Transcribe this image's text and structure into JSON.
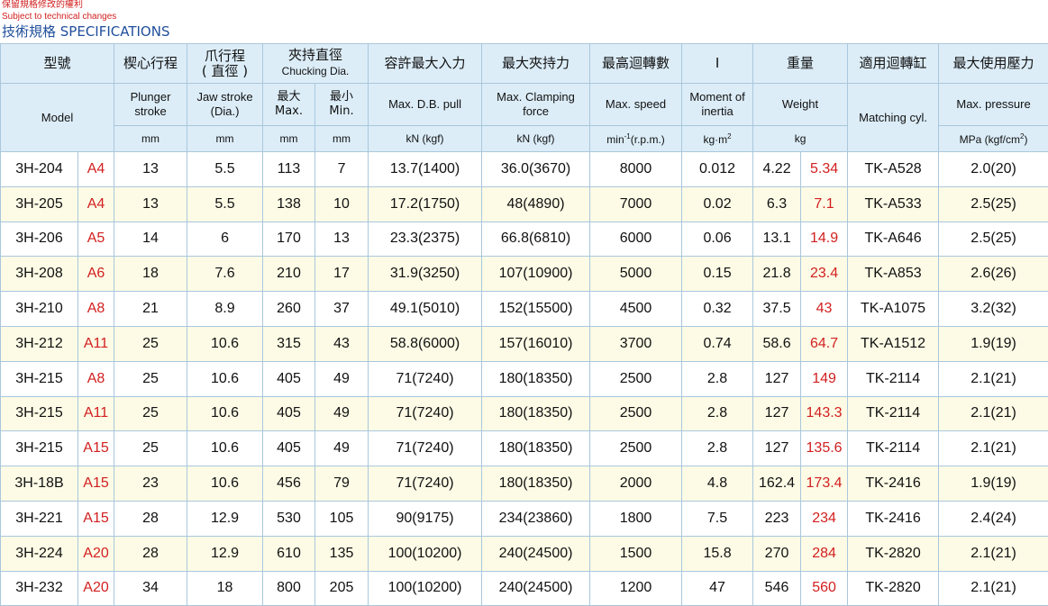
{
  "notice": {
    "zh": "保留規格修改的權利",
    "en": "Subject to technical changes"
  },
  "title": "技術規格 SPECIFICATIONS",
  "header": {
    "model_zh": "型號",
    "model_en": "Model",
    "plunger_zh": "楔心行程",
    "plunger_en": "Plunger stroke",
    "plunger_unit": "mm",
    "jaw_zh": "爪行程",
    "jaw_zh2": "( 直徑 )",
    "jaw_en": "Jaw stroke",
    "jaw_en2": "(Dia.)",
    "jaw_unit": "mm",
    "chuck_zh": "夾持直徑",
    "chuck_en": "Chucking Dia.",
    "max_zh": "最大",
    "max_en": "Max.",
    "min_zh": "最小",
    "min_en": "Min.",
    "max_unit": "mm",
    "min_unit": "mm",
    "pull_zh": "容許最大入力",
    "pull_en": "Max. D.B. pull",
    "pull_unit": "kN (kgf)",
    "clamp_zh": "最大夾持力",
    "clamp_en": "Max. Clamping",
    "clamp_en2": "force",
    "clamp_unit": "kN (kgf)",
    "speed_zh": "最高迴轉數",
    "speed_en": "Max. speed",
    "speed_unit_pre": "min",
    "speed_unit_sup": "-1",
    "speed_unit_post": "(r.p.m.)",
    "inertia_zh": "I",
    "inertia_en": "Moment of",
    "inertia_en2": "inertia",
    "inertia_unit_pre": "kg·m",
    "inertia_unit_sup": "2",
    "weight_zh": "重量",
    "weight_en": "Weight",
    "weight_unit": "kg",
    "cyl_zh": "適用迴轉缸",
    "cyl_en": "Matching cyl.",
    "pressure_zh": "最大使用壓力",
    "pressure_en": "Max. pressure",
    "pressure_unit_pre": "MPa (kgf/cm",
    "pressure_unit_sup": "2",
    "pressure_unit_post": ")"
  },
  "rows": [
    {
      "model": "3H-204",
      "variant": "A4",
      "plunger": "13",
      "jaw": "5.5",
      "max": "113",
      "min": "7",
      "pull": "13.7(1400)",
      "clamp": "36.0(3670)",
      "speed": "8000",
      "inertia": "0.012",
      "weight_a": "4.22",
      "weight_b": "5.34",
      "cyl": "TK-A528",
      "pressure": "2.0(20)"
    },
    {
      "model": "3H-205",
      "variant": "A4",
      "plunger": "13",
      "jaw": "5.5",
      "max": "138",
      "min": "10",
      "pull": "17.2(1750)",
      "clamp": "48(4890)",
      "speed": "7000",
      "inertia": "0.02",
      "weight_a": "6.3",
      "weight_b": "7.1",
      "cyl": "TK-A533",
      "pressure": "2.5(25)"
    },
    {
      "model": "3H-206",
      "variant": "A5",
      "plunger": "14",
      "jaw": "6",
      "max": "170",
      "min": "13",
      "pull": "23.3(2375)",
      "clamp": "66.8(6810)",
      "speed": "6000",
      "inertia": "0.06",
      "weight_a": "13.1",
      "weight_b": "14.9",
      "cyl": "TK-A646",
      "pressure": "2.5(25)"
    },
    {
      "model": "3H-208",
      "variant": "A6",
      "plunger": "18",
      "jaw": "7.6",
      "max": "210",
      "min": "17",
      "pull": "31.9(3250)",
      "clamp": "107(10900)",
      "speed": "5000",
      "inertia": "0.15",
      "weight_a": "21.8",
      "weight_b": "23.4",
      "cyl": "TK-A853",
      "pressure": "2.6(26)"
    },
    {
      "model": "3H-210",
      "variant": "A8",
      "plunger": "21",
      "jaw": "8.9",
      "max": "260",
      "min": "37",
      "pull": "49.1(5010)",
      "clamp": "152(15500)",
      "speed": "4500",
      "inertia": "0.32",
      "weight_a": "37.5",
      "weight_b": "43",
      "cyl": "TK-A1075",
      "pressure": "3.2(32)"
    },
    {
      "model": "3H-212",
      "variant": "A11",
      "plunger": "25",
      "jaw": "10.6",
      "max": "315",
      "min": "43",
      "pull": "58.8(6000)",
      "clamp": "157(16010)",
      "speed": "3700",
      "inertia": "0.74",
      "weight_a": "58.6",
      "weight_b": "64.7",
      "cyl": "TK-A1512",
      "pressure": "1.9(19)"
    },
    {
      "model": "3H-215",
      "variant": "A8",
      "plunger": "25",
      "jaw": "10.6",
      "max": "405",
      "min": "49",
      "pull": "71(7240)",
      "clamp": "180(18350)",
      "speed": "2500",
      "inertia": "2.8",
      "weight_a": "127",
      "weight_b": "149",
      "cyl": "TK-2114",
      "pressure": "2.1(21)"
    },
    {
      "model": "3H-215",
      "variant": "A11",
      "plunger": "25",
      "jaw": "10.6",
      "max": "405",
      "min": "49",
      "pull": "71(7240)",
      "clamp": "180(18350)",
      "speed": "2500",
      "inertia": "2.8",
      "weight_a": "127",
      "weight_b": "143.3",
      "cyl": "TK-2114",
      "pressure": "2.1(21)"
    },
    {
      "model": "3H-215",
      "variant": "A15",
      "plunger": "25",
      "jaw": "10.6",
      "max": "405",
      "min": "49",
      "pull": "71(7240)",
      "clamp": "180(18350)",
      "speed": "2500",
      "inertia": "2.8",
      "weight_a": "127",
      "weight_b": "135.6",
      "cyl": "TK-2114",
      "pressure": "2.1(21)"
    },
    {
      "model": "3H-18B",
      "variant": "A15",
      "plunger": "23",
      "jaw": "10.6",
      "max": "456",
      "min": "79",
      "pull": "71(7240)",
      "clamp": "180(18350)",
      "speed": "2000",
      "inertia": "4.8",
      "weight_a": "162.4",
      "weight_b": "173.4",
      "cyl": "TK-2416",
      "pressure": "1.9(19)"
    },
    {
      "model": "3H-221",
      "variant": "A15",
      "plunger": "28",
      "jaw": "12.9",
      "max": "530",
      "min": "105",
      "pull": "90(9175)",
      "clamp": "234(23860)",
      "speed": "1800",
      "inertia": "7.5",
      "weight_a": "223",
      "weight_b": "234",
      "cyl": "TK-2416",
      "pressure": "2.4(24)"
    },
    {
      "model": "3H-224",
      "variant": "A20",
      "plunger": "28",
      "jaw": "12.9",
      "max": "610",
      "min": "135",
      "pull": "100(10200)",
      "clamp": "240(24500)",
      "speed": "1500",
      "inertia": "15.8",
      "weight_a": "270",
      "weight_b": "284",
      "cyl": "TK-2820",
      "pressure": "2.1(21)"
    },
    {
      "model": "3H-232",
      "variant": "A20",
      "plunger": "34",
      "jaw": "18",
      "max": "800",
      "min": "205",
      "pull": "100(10200)",
      "clamp": "240(24500)",
      "speed": "1200",
      "inertia": "47",
      "weight_a": "546",
      "weight_b": "560",
      "cyl": "TK-2820",
      "pressure": "2.1(21)"
    }
  ]
}
